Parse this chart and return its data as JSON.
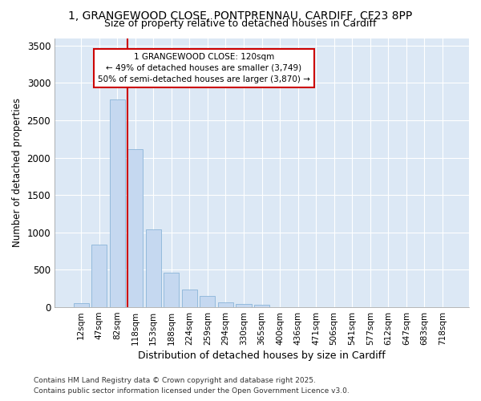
{
  "title1": "1, GRANGEWOOD CLOSE, PONTPRENNAU, CARDIFF, CF23 8PP",
  "title2": "Size of property relative to detached houses in Cardiff",
  "xlabel": "Distribution of detached houses by size in Cardiff",
  "ylabel": "Number of detached properties",
  "bar_labels": [
    "12sqm",
    "47sqm",
    "82sqm",
    "118sqm",
    "153sqm",
    "188sqm",
    "224sqm",
    "259sqm",
    "294sqm",
    "330sqm",
    "365sqm",
    "400sqm",
    "436sqm",
    "471sqm",
    "506sqm",
    "541sqm",
    "577sqm",
    "612sqm",
    "647sqm",
    "683sqm",
    "718sqm"
  ],
  "bar_values": [
    55,
    840,
    2780,
    2110,
    1040,
    460,
    240,
    155,
    65,
    45,
    30,
    0,
    0,
    0,
    0,
    0,
    0,
    0,
    0,
    0,
    0
  ],
  "bar_color": "#c5d8f0",
  "bar_edgecolor": "#8ab4d8",
  "vline_index": 3,
  "vline_color": "#cc0000",
  "annotation_text": "1 GRANGEWOOD CLOSE: 120sqm\n← 49% of detached houses are smaller (3,749)\n50% of semi-detached houses are larger (3,870) →",
  "annotation_box_edgecolor": "#cc0000",
  "annotation_box_facecolor": "#ffffff",
  "ylim": [
    0,
    3600
  ],
  "yticks": [
    0,
    500,
    1000,
    1500,
    2000,
    2500,
    3000,
    3500
  ],
  "fig_facecolor": "#ffffff",
  "ax_facecolor": "#dce8f5",
  "grid_color": "#ffffff",
  "footer1": "Contains HM Land Registry data © Crown copyright and database right 2025.",
  "footer2": "Contains public sector information licensed under the Open Government Licence v3.0."
}
